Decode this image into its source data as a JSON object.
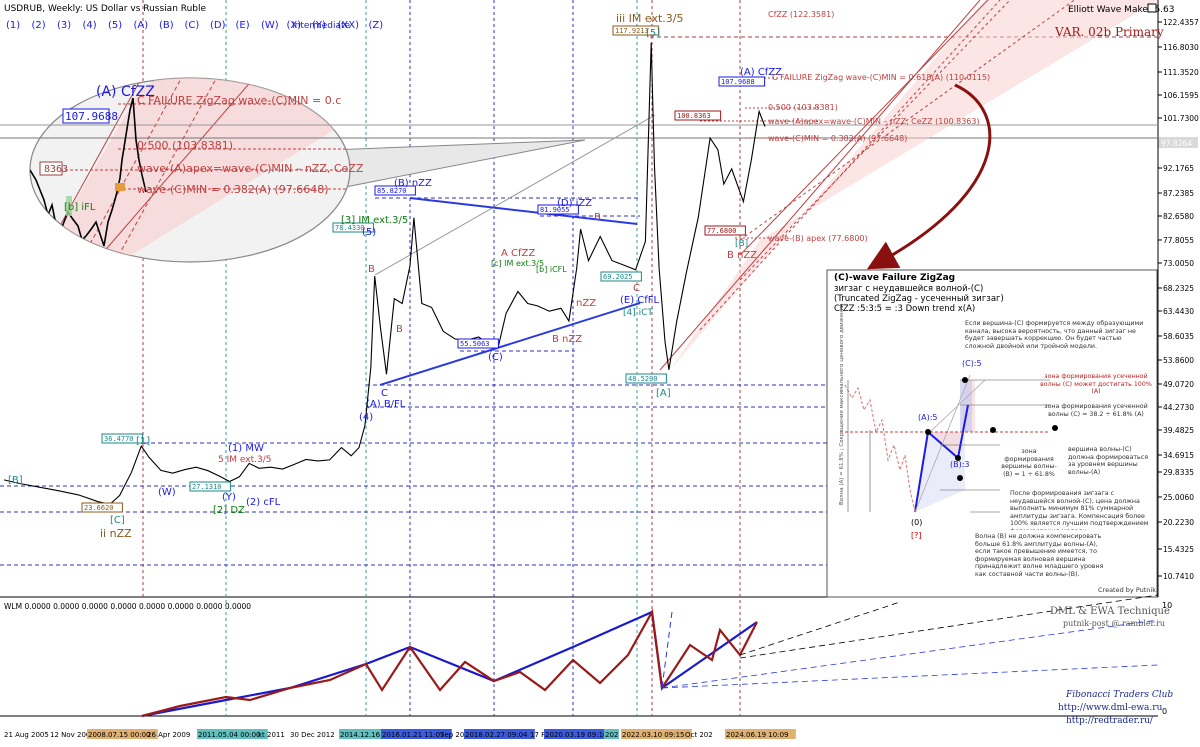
{
  "chart_title": "USDRUB, Weekly:  US Dollar vs Russian Ruble",
  "degree_buttons": [
    "(1)",
    "(2)",
    "(3)",
    "(4)",
    "(5)",
    "(A)",
    "(B)",
    "(C)",
    "(D)",
    "(E)",
    "(W)",
    "(X)",
    "(Y)",
    "(XX)",
    "(Z)"
  ],
  "degree_level": "Intermediate",
  "indicator_name": "Elliott Wave Maker 5.63",
  "variant_label": "VAR. 02b Primary",
  "price_axis": {
    "ticks": [
      "122.4357",
      "116.8030",
      "111.3520",
      "106.1595",
      "101.7300",
      "97.5225",
      "92.1765",
      "87.2385",
      "82.6580",
      "77.8055",
      "73.0050",
      "68.2325",
      "63.4430",
      "58.6035",
      "53.8600",
      "49.0720",
      "44.2730",
      "39.4825",
      "34.6915",
      "29.8335",
      "25.0060",
      "20.2230",
      "15.4325",
      "10.7410"
    ],
    "price_badge": "97.8264"
  },
  "time_axis": {
    "ticks": [
      "21 Aug 2005",
      "12 Nov 2006",
      "2008.07.15 00:00",
      "26 Apr 2009",
      "2011.05.04 00:00",
      "kt 2011",
      "30 Dec 2012",
      "2014.12.16 0",
      "2016.01.21 11:07",
      "Sep 20",
      "2018.02.27 09:04",
      "17 F",
      "2020.03.19 09:10",
      "202",
      "2022.03.10 09:15",
      "Oct 202",
      "2024.06.19 10:09"
    ]
  },
  "chart_data": {
    "type": "line",
    "symbol": "USDRUB",
    "timeframe": "Weekly",
    "x_range": [
      "2005-08",
      "2025-01"
    ],
    "ylim": [
      8,
      127
    ],
    "grid": false,
    "x": [
      2005.6,
      2006.0,
      2006.5,
      2007.0,
      2007.5,
      2008.0,
      2008.3,
      2008.55,
      2008.85,
      2009.1,
      2009.3,
      2009.6,
      2009.9,
      2010.2,
      2010.5,
      2010.8,
      2011.1,
      2011.35,
      2011.6,
      2011.85,
      2012.1,
      2012.4,
      2012.7,
      2013.0,
      2013.3,
      2013.6,
      2013.9,
      2014.2,
      2014.45,
      2014.65,
      2014.8,
      2014.95,
      2015.05,
      2015.2,
      2015.35,
      2015.55,
      2015.75,
      2015.95,
      2016.05,
      2016.25,
      2016.5,
      2016.8,
      2017.1,
      2017.4,
      2017.7,
      2018.0,
      2018.2,
      2018.4,
      2018.7,
      2018.95,
      2019.2,
      2019.5,
      2019.8,
      2020.0,
      2020.2,
      2020.3,
      2020.5,
      2020.8,
      2021.1,
      2021.4,
      2021.7,
      2021.95,
      2022.1,
      2022.18,
      2022.3,
      2022.45,
      2022.55,
      2022.75,
      2023.0,
      2023.3,
      2023.6,
      2023.8,
      2023.95,
      2024.15,
      2024.45,
      2024.65,
      2024.85,
      2025.0
    ],
    "y": [
      28.3,
      27.6,
      26.9,
      26.2,
      25.4,
      24.1,
      23.6,
      25.3,
      29.8,
      36.4,
      34.0,
      30.3,
      29.6,
      30.5,
      31.2,
      30.2,
      29.0,
      28.0,
      28.9,
      32.3,
      30.9,
      31.2,
      30.7,
      32.0,
      33.4,
      33.0,
      33.3,
      36.1,
      34.5,
      36.1,
      40.4,
      52.3,
      70.5,
      60.0,
      51.0,
      66.0,
      65.0,
      72.5,
      82.3,
      65.0,
      64.2,
      59.5,
      58.0,
      57.8,
      58.4,
      56.8,
      56.5,
      63.0,
      67.5,
      65.0,
      64.5,
      63.4,
      64.0,
      61.5,
      72.0,
      80.0,
      73.5,
      78.5,
      73.5,
      72.6,
      71.7,
      77.5,
      117.8,
      93.0,
      72.0,
      57.5,
      51.9,
      61.4,
      71.3,
      82.4,
      98.6,
      96.4,
      89.0,
      92.0,
      85.5,
      94.0,
      103.0,
      100.4
    ],
    "ylabel": "",
    "price_levels": [
      {
        "label": "117.9213",
        "value": 117.92
      },
      {
        "label": "107.9688",
        "value": 107.97
      },
      {
        "label": "100.8363",
        "value": 100.84
      },
      {
        "label": "85.8270",
        "value": 85.83
      },
      {
        "label": "81.9055",
        "value": 81.91
      },
      {
        "label": "78.4330",
        "value": 78.43
      },
      {
        "label": "77.6800",
        "value": 77.68
      },
      {
        "label": "69.2025",
        "value": 69.2
      },
      {
        "label": "55.5063",
        "value": 55.51
      },
      {
        "label": "48.5200",
        "value": 48.52
      },
      {
        "label": "36.4770",
        "value": 36.48
      },
      {
        "label": "27.1310",
        "value": 27.13
      },
      {
        "label": "23.6620",
        "value": 23.66
      }
    ],
    "fib_labels": [
      "C FAILURE ZigZag wave-(C)MIN = 0.618(A) (110.0115)",
      "0.500 (103.8381)",
      "wave-(A)apex=wave-(C)MIN – nZZ, CeZZ (100.8363)",
      "wave-(C)MIN = 0.382(A) (97.6648)",
      "wave-(B) apex (77.6800)",
      "CfZZ (122.3581)"
    ]
  },
  "wave_labels": {
    "iii_im": "iii IM ext.3/5",
    "five_box": "[5]",
    "a_cfzz": "(A) CfZZ",
    "b_nzz_top": "(B) nZZ",
    "d_izz": "(D) iZZ",
    "e_cfl": "(E) CfFL",
    "e_ict": "[4] iCT",
    "c_paren": "(C)",
    "b_nzz_low": "B nZZ",
    "three_im": "[3] IM ext.3/5",
    "five_paren": "(5)",
    "a_bfl": "(A) B/FL",
    "four_paren": "(4)",
    "a_box": "[A]",
    "ii_nzz": "ii nZZ",
    "c_box": "[C]",
    "b_box": "[B]",
    "one_box": "[1]",
    "w_paren": "(W)",
    "one_mw": "(1) MW",
    "im_35": "5 IM ext.3/5",
    "y_paren": "(Y)",
    "two_dz": "[2] DZ",
    "two_cfl": "(2) cFL",
    "a_cfzz_mid": "A CfZZ",
    "b_nzz_mid": "B nZZ",
    "nzz_mid": "nZZ",
    "b_nzz_right": "B nZZ",
    "c_right": "C",
    "a_bfl_label": "B",
    "im_ext_small": "[c] IM ext.3/5",
    "ifl": "[b] iCFL",
    "b_right": "[B]",
    "c_small": "C"
  },
  "zoom": {
    "a_cfzz": "(A) CfZZ",
    "price_box": "107.9688",
    "price_left": "8363",
    "failure_text": "C FAILURE ZigZag wave-(C)MIN = 0.c",
    "fib500": "0.500 (103.8381)",
    "apex": "wave-(A)apex=wave-(C)MIN – nZZ, CeZZ",
    "cmin": "wave-(C)MIN = 0.382(A) (97.6648)",
    "b_ifl": "[b] iFL"
  },
  "info_panel": {
    "title": "(C)-wave Failure ZigZag",
    "line1": "зигзаг с неудавшейся волной-(C)",
    "line2": "(Truncated ZigZag - усеченный зигзаг)",
    "line3": "CfZZ :5:3:5 = :3 Down trend x(A)",
    "note1": "Если вершина-(C) формируется между образующими канала, высока вероятность, что данный зигзаг не будет завершать коррекцию. Он будет частью сложной двойной или тройной модели.",
    "zone100": "зона формирования усеченной волны (C) может достигать 100% (A)",
    "zone382": "зона формирования усеченной волны (C) = 38.2 ÷ 61.8% (A)",
    "zoneB": "зона формирования вершины волны-(B) = 1 ÷ 61.8% (A)",
    "vertexC": "вершина волны-(C) должна формироваться за уровнем вершины волны-(A)",
    "after": "После формирования зигзага с неудавшейся волной-(C), цена должна выполнить минимум 81% суммарной амплитуды зигзага. Компенсация более 100% является лучшим подтверждением формирования модели.",
    "waveB": "Волна (B) не должна компенсировать больше 61.8% амплитуды волны-(A), если такое превышение имеется, то формируемая волновая вершина принадлежит волне младшего уровня как составной части волны-(B).",
    "credit": "Created by Putnik",
    "lbl_c5": "(C):5",
    "lbl_a5": "(A):5",
    "lbl_b3": "(B):3",
    "lbl_0": "(0)",
    "lbl_q": "[?]",
    "vert_text": "Волна (A) = 61.8% ; Сокращение максимального ценового движения"
  },
  "wlm": {
    "label": "WLM 0.0000 0.0000 0.0000 0.0000 0.0000 0.0000 0.0000 0.0000",
    "ticks": [
      "10",
      "0"
    ],
    "technique": "DML & EWA Technique",
    "email": "putnik-post @ rambler.ru",
    "club": "Fibonacci   Traders   Club",
    "site1": "http://www.dml-ewa.ru",
    "site2": "http://redtrader.ru/"
  },
  "colors": {
    "price_line": "#000000",
    "wave_blue": "#1a1ae6",
    "wave_red": "#a01818",
    "fib_red": "#c04040",
    "channel_fill": "#f7cfcf",
    "label_green": "#108010",
    "label_teal": "#1a8a8a",
    "label_brown": "#8a5a1a"
  }
}
